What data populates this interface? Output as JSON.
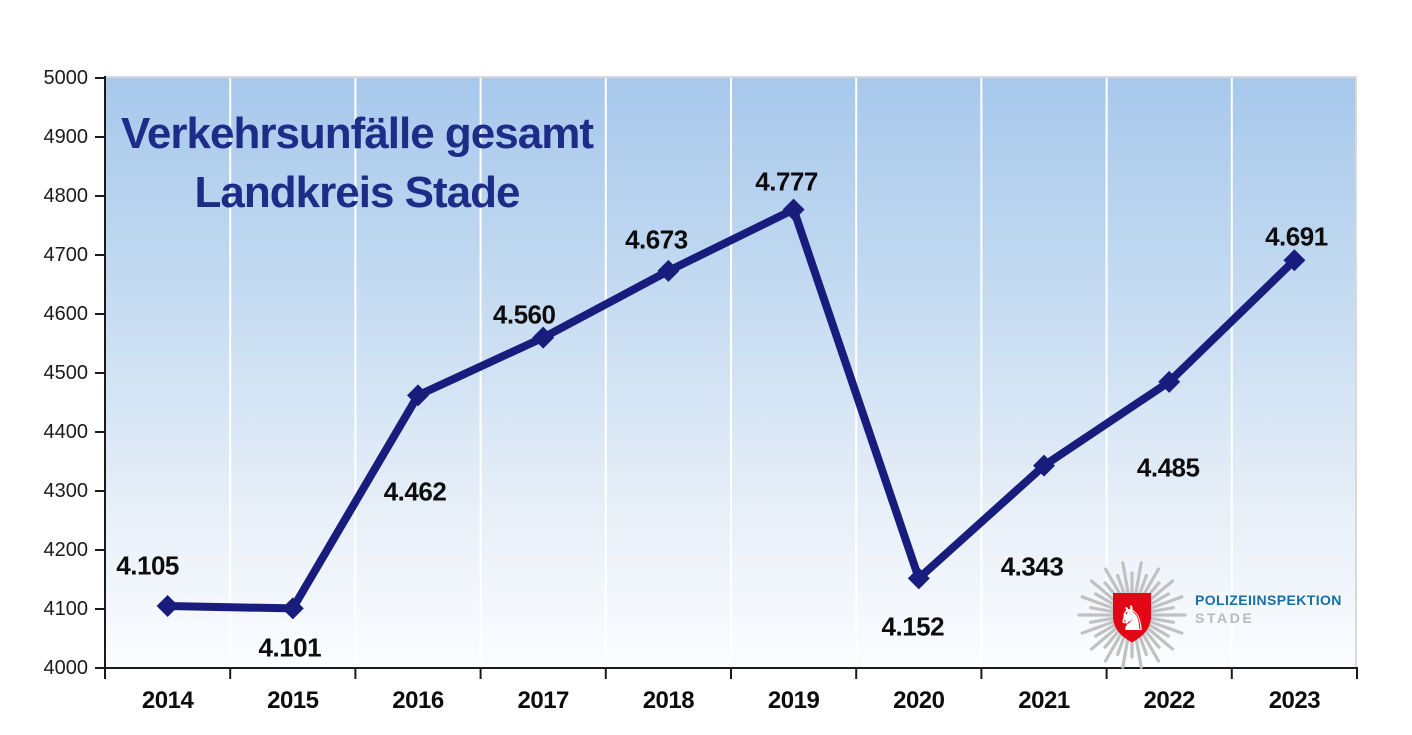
{
  "title": {
    "line1": "Verkehrsunfälle gesamt",
    "line2": "Landkreis Stade",
    "color": "#1c2c87"
  },
  "chart_data": {
    "type": "line",
    "title": "Verkehrsunfälle gesamt Landkreis Stade",
    "categories": [
      "2014",
      "2015",
      "2016",
      "2017",
      "2018",
      "2019",
      "2020",
      "2021",
      "2022",
      "2023"
    ],
    "series": [
      {
        "name": "Verkehrsunfälle gesamt",
        "values": [
          4105,
          4101,
          4462,
          4560,
          4673,
          4777,
          4152,
          4343,
          4485,
          4691
        ],
        "point_labels": [
          "4.105",
          "4.101",
          "4.462",
          "4.560",
          "4.673",
          "4.777",
          "4.152",
          "4.343",
          "4.485",
          "4.691"
        ],
        "color": "#181d7d",
        "marker": "diamond"
      }
    ],
    "xlabel": "",
    "ylabel": "",
    "ylim": [
      4000,
      5000
    ],
    "yticks": [
      4000,
      4100,
      4200,
      4300,
      4400,
      4500,
      4600,
      4700,
      4800,
      4900,
      5000
    ],
    "grid": {
      "vertical": true,
      "horizontal": false,
      "color": "#ffffff"
    },
    "legend": "none",
    "plot_background_gradient": {
      "top": "#a7c8ec",
      "bottom": "#fbfdff"
    },
    "axis_color": "#1a1a1a",
    "tick_label_color": "#1a1a1a",
    "data_label_color": "#0d0d0d"
  },
  "logo": {
    "org": "POLIZEIINSPEKTION",
    "unit": "STADE",
    "org_color": "#1470a8",
    "unit_color": "#b7b9bc",
    "star_color": "#c1c1c1",
    "shield_color": "#e30615",
    "horse_color": "#ffffff",
    "horse_glyph": "♞"
  }
}
